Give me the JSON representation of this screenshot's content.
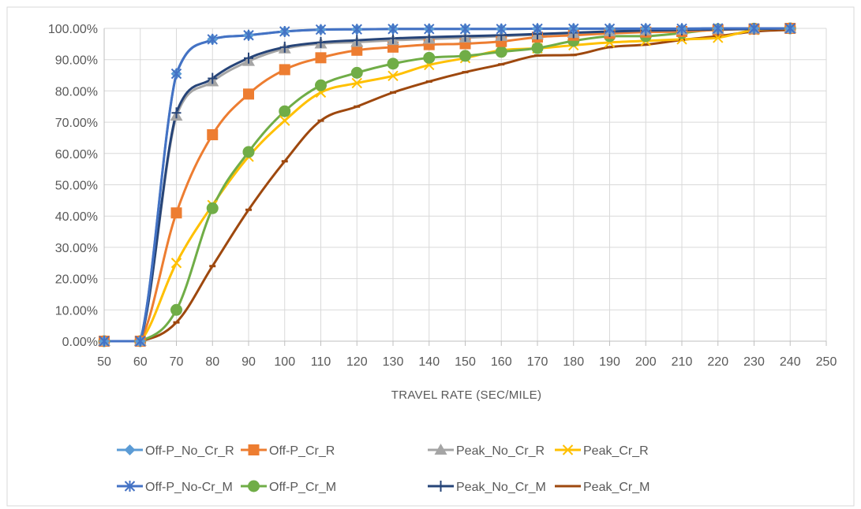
{
  "chart_data": {
    "type": "line",
    "xlabel": "TRAVEL RATE (SEC/MILE)",
    "ylabel": "",
    "title": "",
    "xlim": [
      50,
      250
    ],
    "xticks": [
      50,
      60,
      70,
      80,
      90,
      100,
      110,
      120,
      130,
      140,
      150,
      160,
      170,
      180,
      190,
      200,
      210,
      220,
      230,
      240,
      250
    ],
    "ylim": [
      0,
      1
    ],
    "yticks": [
      0,
      0.1,
      0.2,
      0.3,
      0.4,
      0.5,
      0.6,
      0.7,
      0.8,
      0.9,
      1.0
    ],
    "ytick_labels": [
      "0.00%",
      "10.00%",
      "20.00%",
      "30.00%",
      "40.00%",
      "50.00%",
      "60.00%",
      "70.00%",
      "80.00%",
      "90.00%",
      "100.00%"
    ],
    "grid": "both",
    "legend_position": "bottom",
    "x": [
      50,
      60,
      70,
      80,
      90,
      100,
      110,
      120,
      130,
      140,
      150,
      160,
      170,
      180,
      190,
      200,
      210,
      220,
      230,
      240
    ],
    "series": [
      {
        "name": "Off-P_No_Cr_R",
        "color": "#5b9bd5",
        "marker": "diamond",
        "values": [
          0,
          0,
          0.855,
          0.965,
          0.978,
          0.99,
          0.996,
          0.997,
          0.998,
          0.998,
          0.998,
          0.998,
          0.999,
          0.999,
          0.999,
          0.999,
          0.999,
          1.0,
          1.0,
          1.0
        ]
      },
      {
        "name": "Off-P_Cr_R",
        "color": "#ed7d31",
        "marker": "square",
        "values": [
          0,
          0,
          0.41,
          0.66,
          0.79,
          0.868,
          0.906,
          0.93,
          0.94,
          0.948,
          0.951,
          0.958,
          0.972,
          0.978,
          0.984,
          0.988,
          0.99,
          0.995,
          0.998,
          1.0
        ]
      },
      {
        "name": "Peak_No_Cr_R",
        "color": "#a5a5a5",
        "marker": "triangle",
        "values": [
          0,
          0,
          0.72,
          0.83,
          0.895,
          0.935,
          0.951,
          0.956,
          0.962,
          0.966,
          0.97,
          0.975,
          0.98,
          0.985,
          0.99,
          0.993,
          0.995,
          0.997,
          0.998,
          1.0
        ]
      },
      {
        "name": "Peak_Cr_R",
        "color": "#ffc000",
        "marker": "x",
        "values": [
          0,
          0,
          0.25,
          0.435,
          0.59,
          0.705,
          0.795,
          0.825,
          0.848,
          0.883,
          0.905,
          0.93,
          0.936,
          0.946,
          0.955,
          0.96,
          0.965,
          0.97,
          0.995,
          1.0
        ]
      },
      {
        "name": "Off-P_No-Cr_M",
        "color": "#4472c4",
        "marker": "star",
        "values": [
          0,
          0,
          0.855,
          0.965,
          0.978,
          0.99,
          0.996,
          0.997,
          0.998,
          0.998,
          0.998,
          0.998,
          0.999,
          0.999,
          0.999,
          0.999,
          0.999,
          1.0,
          1.0,
          1.0
        ]
      },
      {
        "name": "Off-P_Cr_M",
        "color": "#70ad47",
        "marker": "circle",
        "values": [
          0,
          0,
          0.1,
          0.425,
          0.605,
          0.735,
          0.818,
          0.858,
          0.887,
          0.906,
          0.912,
          0.925,
          0.937,
          0.96,
          0.975,
          0.975,
          0.985,
          0.997,
          0.999,
          1.0
        ]
      },
      {
        "name": "Peak_No_Cr_M",
        "color": "#264478",
        "marker": "plus",
        "values": [
          0,
          0,
          0.73,
          0.84,
          0.905,
          0.94,
          0.955,
          0.962,
          0.968,
          0.972,
          0.975,
          0.978,
          0.982,
          0.986,
          0.99,
          0.993,
          0.995,
          0.997,
          0.998,
          1.0
        ]
      },
      {
        "name": "Peak_Cr_M",
        "color": "#9e480e",
        "marker": "dash",
        "values": [
          0,
          0,
          0.06,
          0.24,
          0.42,
          0.575,
          0.705,
          0.75,
          0.795,
          0.83,
          0.86,
          0.885,
          0.913,
          0.915,
          0.94,
          0.948,
          0.963,
          0.975,
          0.99,
          0.995
        ]
      }
    ]
  }
}
